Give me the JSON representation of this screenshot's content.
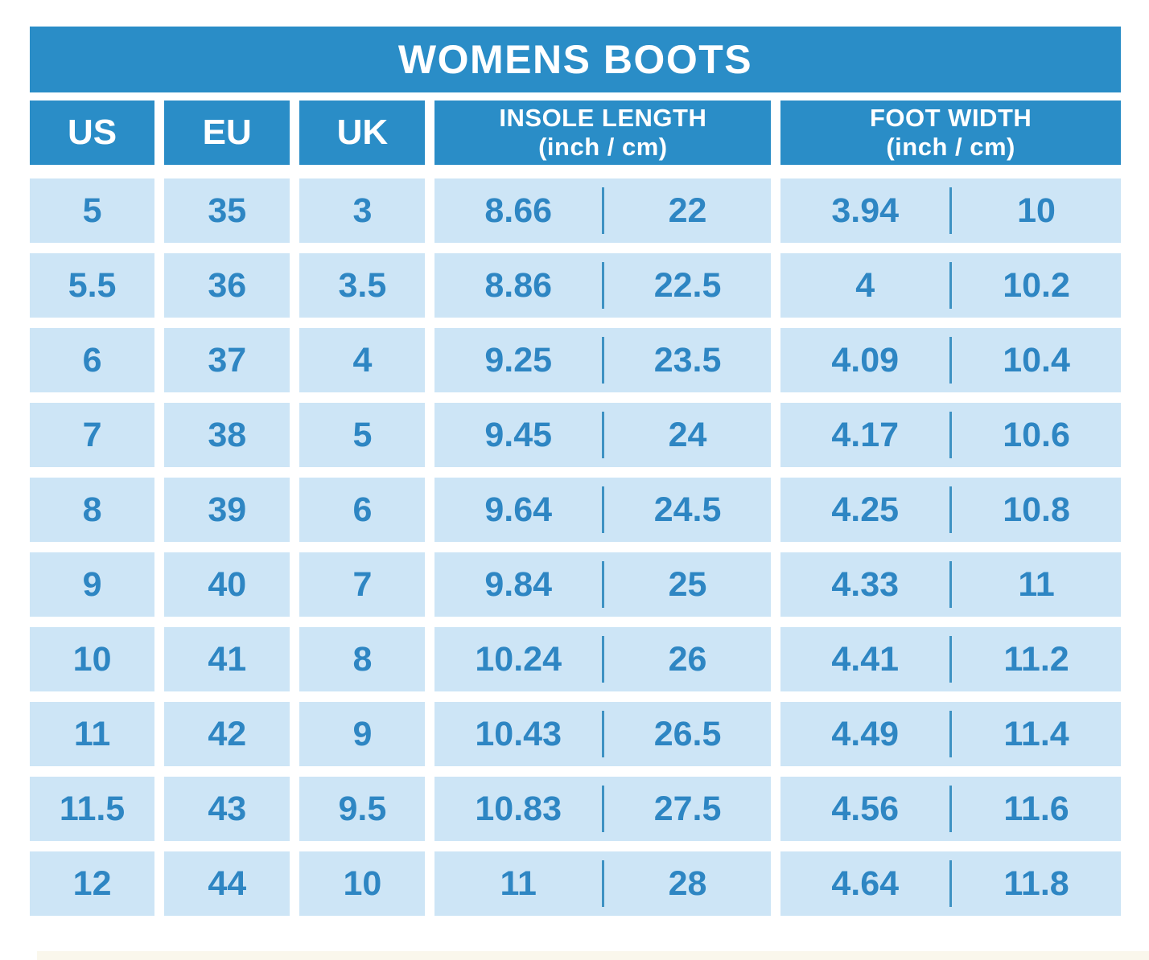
{
  "chart": {
    "title": "WOMENS BOOTS",
    "headers": {
      "us": "US",
      "eu": "EU",
      "uk": "UK",
      "insole": {
        "line1": "INSOLE LENGTH",
        "line2": "(inch / cm)"
      },
      "foot": {
        "line1": "FOOT WIDTH",
        "line2": "(inch / cm)"
      }
    },
    "rows": [
      {
        "us": "5",
        "eu": "35",
        "uk": "3",
        "insole_inch": "8.66",
        "insole_cm": "22",
        "width_inch": "3.94",
        "width_cm": "10"
      },
      {
        "us": "5.5",
        "eu": "36",
        "uk": "3.5",
        "insole_inch": "8.86",
        "insole_cm": "22.5",
        "width_inch": "4",
        "width_cm": "10.2"
      },
      {
        "us": "6",
        "eu": "37",
        "uk": "4",
        "insole_inch": "9.25",
        "insole_cm": "23.5",
        "width_inch": "4.09",
        "width_cm": "10.4"
      },
      {
        "us": "7",
        "eu": "38",
        "uk": "5",
        "insole_inch": "9.45",
        "insole_cm": "24",
        "width_inch": "4.17",
        "width_cm": "10.6"
      },
      {
        "us": "8",
        "eu": "39",
        "uk": "6",
        "insole_inch": "9.64",
        "insole_cm": "24.5",
        "width_inch": "4.25",
        "width_cm": "10.8"
      },
      {
        "us": "9",
        "eu": "40",
        "uk": "7",
        "insole_inch": "9.84",
        "insole_cm": "25",
        "width_inch": "4.33",
        "width_cm": "11"
      },
      {
        "us": "10",
        "eu": "41",
        "uk": "8",
        "insole_inch": "10.24",
        "insole_cm": "26",
        "width_inch": "4.41",
        "width_cm": "11.2"
      },
      {
        "us": "11",
        "eu": "42",
        "uk": "9",
        "insole_inch": "10.43",
        "insole_cm": "26.5",
        "width_inch": "4.49",
        "width_cm": "11.4"
      },
      {
        "us": "11.5",
        "eu": "43",
        "uk": "9.5",
        "insole_inch": "10.83",
        "insole_cm": "27.5",
        "width_inch": "4.56",
        "width_cm": "11.6"
      },
      {
        "us": "12",
        "eu": "44",
        "uk": "10",
        "insole_inch": "11",
        "insole_cm": "28",
        "width_inch": "4.64",
        "width_cm": "11.8"
      }
    ],
    "colors": {
      "header_bg": "#2a8dc7",
      "cell_bg": "#cde5f6",
      "text_blue": "#2e86c3",
      "header_text": "#ffffff",
      "divider": "#3e92c3"
    }
  },
  "chart_data": {
    "type": "table",
    "title": "WOMENS BOOTS",
    "columns": [
      "US",
      "EU",
      "UK",
      "INSOLE LENGTH (inch / cm)",
      "FOOT WIDTH (inch / cm)"
    ],
    "rows": [
      [
        "5",
        "35",
        "3",
        "8.66",
        "22",
        "3.94",
        "10"
      ],
      [
        "5.5",
        "36",
        "3.5",
        "8.86",
        "22.5",
        "4",
        "10.2"
      ],
      [
        "6",
        "37",
        "4",
        "9.25",
        "23.5",
        "4.09",
        "10.4"
      ],
      [
        "7",
        "38",
        "5",
        "9.45",
        "24",
        "4.17",
        "10.6"
      ],
      [
        "8",
        "39",
        "6",
        "9.64",
        "24.5",
        "4.25",
        "10.8"
      ],
      [
        "9",
        "40",
        "7",
        "9.84",
        "25",
        "4.33",
        "11"
      ],
      [
        "10",
        "41",
        "8",
        "10.24",
        "26",
        "4.41",
        "11.2"
      ],
      [
        "11",
        "42",
        "9",
        "10.43",
        "26.5",
        "4.49",
        "11.4"
      ],
      [
        "11.5",
        "43",
        "9.5",
        "10.83",
        "27.5",
        "4.56",
        "11.6"
      ],
      [
        "12",
        "44",
        "10",
        "11",
        "28",
        "4.64",
        "11.8"
      ]
    ]
  }
}
